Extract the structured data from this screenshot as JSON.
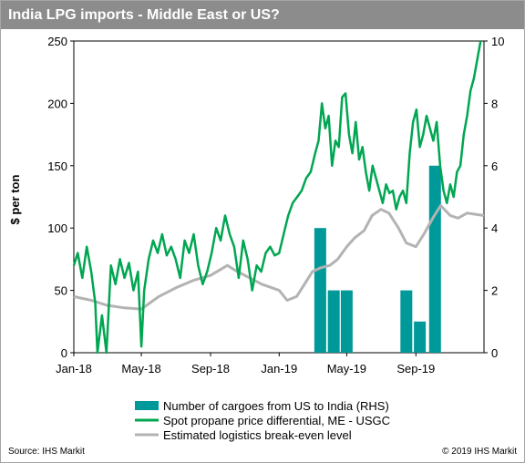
{
  "title": "India LPG imports - Middle East or US?",
  "source": "Source: IHS Markit",
  "copyright": "© 2019 IHS Markit",
  "colors": {
    "bars": "#009999",
    "spread": "#00a651",
    "breakeven": "#b3b3b3",
    "title_bg": "#8c8c8c"
  },
  "chart_data": {
    "type": "bar+line",
    "ylabel": "$ per ton",
    "ylim": [
      0,
      250
    ],
    "yticks": [
      0,
      50,
      100,
      150,
      200,
      250
    ],
    "y2lim": [
      0,
      10
    ],
    "y2ticks": [
      0,
      2,
      4,
      6,
      8,
      10
    ],
    "xlim": [
      "2018-01-01",
      "2019-12-31"
    ],
    "xticks": [
      {
        "label": "Jan-18",
        "date": "2018-01-01"
      },
      {
        "label": "May-18",
        "date": "2018-05-01"
      },
      {
        "label": "Sep-18",
        "date": "2018-09-01"
      },
      {
        "label": "Jan-19",
        "date": "2019-01-01"
      },
      {
        "label": "May-19",
        "date": "2019-05-01"
      },
      {
        "label": "Sep-19",
        "date": "2019-09-01"
      }
    ],
    "legend_position": "bottom",
    "bars": {
      "name": "Number of cargoes from US to India (RHS)",
      "axis": "right",
      "points": [
        {
          "date": "2019-03-15",
          "value": 4
        },
        {
          "date": "2019-04-08",
          "value": 2
        },
        {
          "date": "2019-05-01",
          "value": 2
        },
        {
          "date": "2019-08-15",
          "value": 2
        },
        {
          "date": "2019-09-08",
          "value": 1
        },
        {
          "date": "2019-10-05",
          "value": 6
        }
      ]
    },
    "series": [
      {
        "name": "Spot propane price differential, ME - USGC",
        "axis": "left",
        "points": [
          [
            "2018-01-01",
            70
          ],
          [
            "2018-01-08",
            80
          ],
          [
            "2018-01-16",
            60
          ],
          [
            "2018-01-24",
            85
          ],
          [
            "2018-02-01",
            65
          ],
          [
            "2018-02-08",
            40
          ],
          [
            "2018-02-12",
            0
          ],
          [
            "2018-02-20",
            30
          ],
          [
            "2018-02-28",
            0
          ],
          [
            "2018-03-08",
            70
          ],
          [
            "2018-03-16",
            55
          ],
          [
            "2018-03-24",
            75
          ],
          [
            "2018-04-01",
            60
          ],
          [
            "2018-04-09",
            72
          ],
          [
            "2018-04-17",
            50
          ],
          [
            "2018-04-25",
            65
          ],
          [
            "2018-05-01",
            5
          ],
          [
            "2018-05-06",
            50
          ],
          [
            "2018-05-14",
            75
          ],
          [
            "2018-05-22",
            90
          ],
          [
            "2018-05-30",
            80
          ],
          [
            "2018-06-07",
            95
          ],
          [
            "2018-06-15",
            78
          ],
          [
            "2018-06-23",
            85
          ],
          [
            "2018-07-01",
            75
          ],
          [
            "2018-07-09",
            60
          ],
          [
            "2018-07-17",
            90
          ],
          [
            "2018-07-25",
            80
          ],
          [
            "2018-08-02",
            95
          ],
          [
            "2018-08-10",
            70
          ],
          [
            "2018-08-18",
            55
          ],
          [
            "2018-08-26",
            65
          ],
          [
            "2018-09-03",
            80
          ],
          [
            "2018-09-11",
            100
          ],
          [
            "2018-09-19",
            90
          ],
          [
            "2018-09-27",
            110
          ],
          [
            "2018-10-05",
            95
          ],
          [
            "2018-10-13",
            85
          ],
          [
            "2018-10-21",
            60
          ],
          [
            "2018-10-29",
            90
          ],
          [
            "2018-11-06",
            75
          ],
          [
            "2018-11-14",
            50
          ],
          [
            "2018-11-22",
            70
          ],
          [
            "2018-11-30",
            65
          ],
          [
            "2018-12-08",
            80
          ],
          [
            "2018-12-16",
            85
          ],
          [
            "2018-12-24",
            78
          ],
          [
            "2019-01-01",
            80
          ],
          [
            "2019-01-09",
            95
          ],
          [
            "2019-01-17",
            110
          ],
          [
            "2019-01-25",
            120
          ],
          [
            "2019-02-02",
            125
          ],
          [
            "2019-02-10",
            130
          ],
          [
            "2019-02-18",
            140
          ],
          [
            "2019-02-26",
            145
          ],
          [
            "2019-03-06",
            160
          ],
          [
            "2019-03-12",
            170
          ],
          [
            "2019-03-18",
            200
          ],
          [
            "2019-03-24",
            180
          ],
          [
            "2019-03-30",
            190
          ],
          [
            "2019-04-05",
            150
          ],
          [
            "2019-04-11",
            170
          ],
          [
            "2019-04-17",
            165
          ],
          [
            "2019-04-23",
            205
          ],
          [
            "2019-04-29",
            208
          ],
          [
            "2019-05-05",
            175
          ],
          [
            "2019-05-11",
            160
          ],
          [
            "2019-05-17",
            185
          ],
          [
            "2019-05-23",
            155
          ],
          [
            "2019-05-29",
            165
          ],
          [
            "2019-06-04",
            145
          ],
          [
            "2019-06-10",
            130
          ],
          [
            "2019-06-16",
            150
          ],
          [
            "2019-06-22",
            140
          ],
          [
            "2019-06-28",
            130
          ],
          [
            "2019-07-04",
            120
          ],
          [
            "2019-07-10",
            135
          ],
          [
            "2019-07-16",
            128
          ],
          [
            "2019-07-22",
            130
          ],
          [
            "2019-07-28",
            115
          ],
          [
            "2019-08-03",
            125
          ],
          [
            "2019-08-09",
            130
          ],
          [
            "2019-08-15",
            120
          ],
          [
            "2019-08-21",
            160
          ],
          [
            "2019-08-27",
            185
          ],
          [
            "2019-09-02",
            195
          ],
          [
            "2019-09-08",
            165
          ],
          [
            "2019-09-14",
            175
          ],
          [
            "2019-09-20",
            190
          ],
          [
            "2019-09-26",
            180
          ],
          [
            "2019-10-02",
            170
          ],
          [
            "2019-10-08",
            185
          ],
          [
            "2019-10-14",
            150
          ],
          [
            "2019-10-20",
            130
          ],
          [
            "2019-10-26",
            120
          ],
          [
            "2019-11-01",
            135
          ],
          [
            "2019-11-07",
            125
          ],
          [
            "2019-11-13",
            145
          ],
          [
            "2019-11-19",
            150
          ],
          [
            "2019-11-25",
            175
          ],
          [
            "2019-12-01",
            190
          ],
          [
            "2019-12-07",
            210
          ],
          [
            "2019-12-13",
            220
          ],
          [
            "2019-12-19",
            235
          ],
          [
            "2019-12-25",
            250
          ]
        ]
      },
      {
        "name": "Estimated logistics break-even level",
        "axis": "left",
        "points": [
          [
            "2018-01-01",
            45
          ],
          [
            "2018-02-01",
            42
          ],
          [
            "2018-03-01",
            38
          ],
          [
            "2018-04-01",
            36
          ],
          [
            "2018-05-01",
            35
          ],
          [
            "2018-06-01",
            45
          ],
          [
            "2018-07-01",
            52
          ],
          [
            "2018-08-01",
            58
          ],
          [
            "2018-09-01",
            62
          ],
          [
            "2018-10-01",
            70
          ],
          [
            "2018-10-15",
            66
          ],
          [
            "2018-11-01",
            62
          ],
          [
            "2018-12-01",
            55
          ],
          [
            "2019-01-01",
            50
          ],
          [
            "2019-01-15",
            42
          ],
          [
            "2019-02-01",
            45
          ],
          [
            "2019-02-15",
            55
          ],
          [
            "2019-03-01",
            65
          ],
          [
            "2019-03-15",
            68
          ],
          [
            "2019-04-01",
            70
          ],
          [
            "2019-04-15",
            75
          ],
          [
            "2019-05-01",
            85
          ],
          [
            "2019-05-15",
            92
          ],
          [
            "2019-06-01",
            98
          ],
          [
            "2019-06-15",
            110
          ],
          [
            "2019-07-01",
            115
          ],
          [
            "2019-07-15",
            112
          ],
          [
            "2019-08-01",
            100
          ],
          [
            "2019-08-15",
            88
          ],
          [
            "2019-09-01",
            85
          ],
          [
            "2019-09-15",
            95
          ],
          [
            "2019-10-01",
            108
          ],
          [
            "2019-10-15",
            118
          ],
          [
            "2019-11-01",
            110
          ],
          [
            "2019-11-15",
            108
          ],
          [
            "2019-12-01",
            112
          ],
          [
            "2019-12-31",
            110
          ]
        ]
      }
    ]
  }
}
